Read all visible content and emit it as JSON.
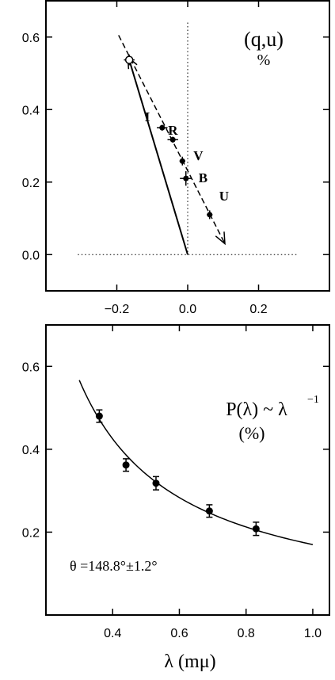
{
  "chart_data": [
    {
      "type": "scatter",
      "title": "",
      "annotation": [
        "(q,u)",
        "%"
      ],
      "xlabel": "",
      "ylabel": "",
      "xlim": [
        -0.4,
        0.4
      ],
      "ylim": [
        -0.1,
        0.7
      ],
      "xticks": [
        -0.2,
        0.0,
        0.2
      ],
      "xtick_labels": [
        "−0.2",
        "0.0",
        "0.2"
      ],
      "yticks": [
        0.0,
        0.2,
        0.4,
        0.6
      ],
      "ytick_labels": [
        "0.0",
        "0.2",
        "0.4",
        "0.6"
      ],
      "grid": false,
      "reference_lines": {
        "vertical_x": 0.0,
        "horizontal_y": 0.0,
        "style": "dotted"
      },
      "points": [
        {
          "label": "I",
          "q": -0.072,
          "u": 0.35,
          "q_err": 0.015,
          "u_err": 0.008
        },
        {
          "label": "R",
          "q": -0.042,
          "u": 0.317,
          "q_err": 0.015,
          "u_err": 0.008
        },
        {
          "label": "V",
          "q": -0.015,
          "u": 0.258,
          "q_err": 0.008,
          "u_err": 0.012
        },
        {
          "label": "B",
          "q": -0.005,
          "u": 0.21,
          "q_err": 0.017,
          "u_err": 0.02
        },
        {
          "label": "U",
          "q": 0.062,
          "u": 0.11,
          "q_err": 0.008,
          "u_err": 0.012
        }
      ],
      "open_point": {
        "q": -0.165,
        "u": 0.537,
        "q_err": 0.015,
        "u_err": 0.015
      },
      "solid_line": [
        [
          0.0,
          0.0
        ],
        [
          -0.165,
          0.537
        ]
      ],
      "dashed_fit": [
        [
          -0.195,
          0.605
        ],
        [
          0.105,
          0.03
        ]
      ]
    },
    {
      "type": "scatter",
      "title": "",
      "annotation": [
        "P(λ) ~ λ",
        "−1",
        "(%)"
      ],
      "inset_text": "θ =148.8°±1.2°",
      "xlabel": "λ (mμ)",
      "ylabel": "",
      "xlim": [
        0.2,
        1.05
      ],
      "ylim": [
        0.0,
        0.7
      ],
      "xticks": [
        0.4,
        0.6,
        0.8,
        1.0
      ],
      "xtick_labels": [
        "0.4",
        "0.6",
        "0.8",
        "1.0"
      ],
      "yticks": [
        0.2,
        0.4,
        0.6
      ],
      "ytick_labels": [
        "0.2",
        "0.4",
        "0.6"
      ],
      "grid": false,
      "x": [
        0.36,
        0.44,
        0.53,
        0.69,
        0.83
      ],
      "y": [
        0.48,
        0.362,
        0.318,
        0.251,
        0.208
      ],
      "y_err": [
        0.015,
        0.015,
        0.016,
        0.015,
        0.016
      ],
      "curve": {
        "form": "A/λ",
        "A": 0.17,
        "x_range": [
          0.3,
          1.0
        ]
      }
    }
  ]
}
